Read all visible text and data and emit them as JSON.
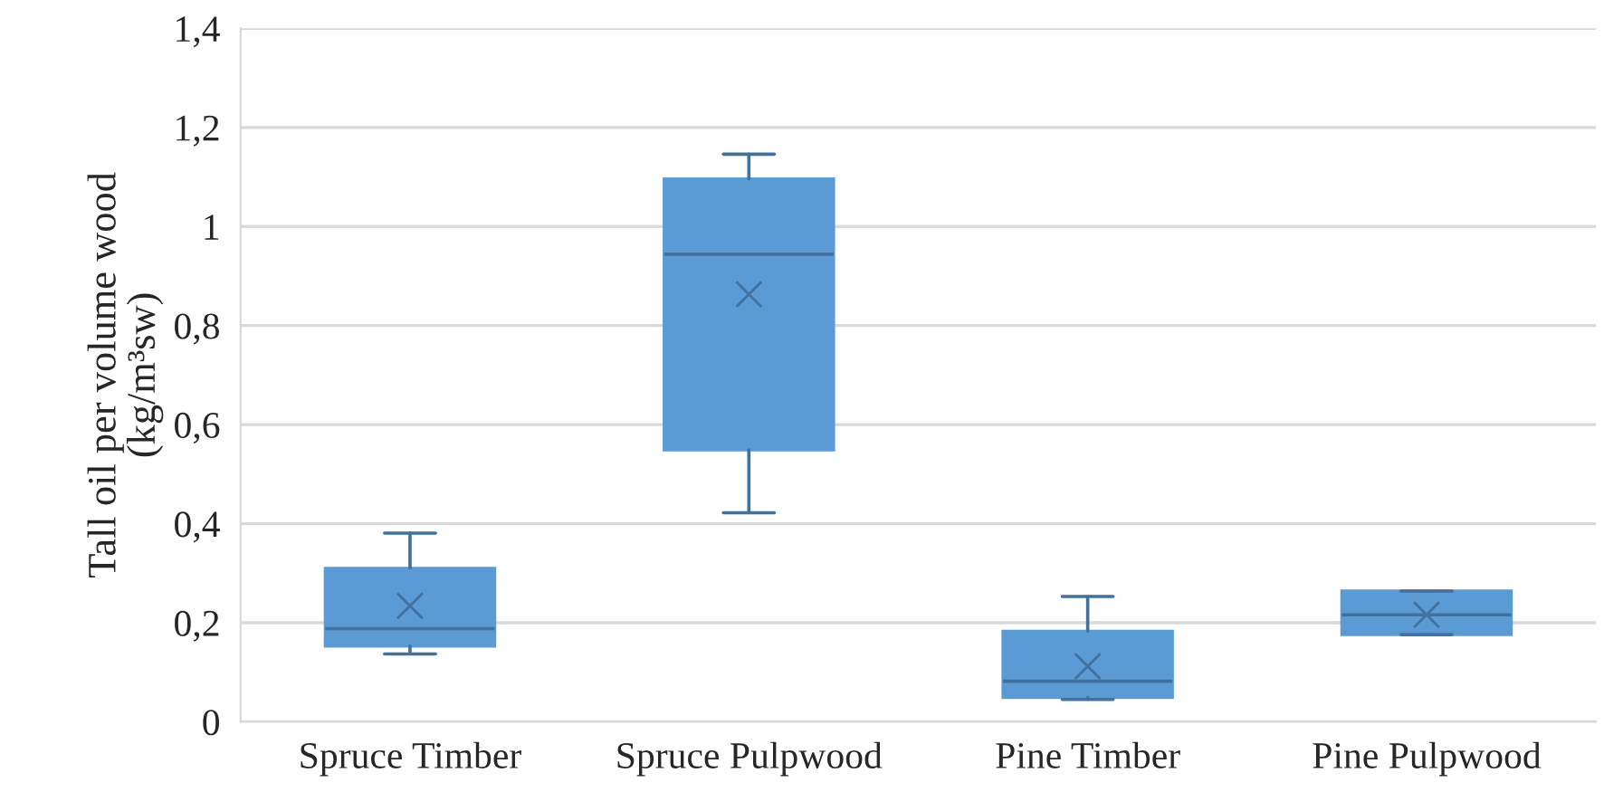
{
  "chart_data": {
    "type": "box",
    "ylabel": "Tall oil per volume wood\n(kg/m³sw)",
    "categories": [
      "Spruce Timber",
      "Spruce Pulpwood",
      "Pine Timber",
      "Pine Pulpwood"
    ],
    "boxes": [
      {
        "low": 0.137,
        "q1": 0.153,
        "median": 0.188,
        "q3": 0.31,
        "high": 0.381,
        "mean": 0.234
      },
      {
        "low": 0.422,
        "q1": 0.549,
        "median": 0.944,
        "q3": 1.096,
        "high": 1.146,
        "mean": 0.863
      },
      {
        "low": 0.045,
        "q1": 0.049,
        "median": 0.082,
        "q3": 0.183,
        "high": 0.253,
        "mean": 0.112
      },
      {
        "low": 0.176,
        "q1": 0.176,
        "median": 0.216,
        "q3": 0.264,
        "high": 0.264,
        "mean": 0.216
      }
    ],
    "color": "#5b9bd5",
    "ylim": [
      0,
      1.4
    ],
    "yticks": [
      0,
      {
        "value": 0.2,
        "label": "0,2"
      },
      {
        "value": 0.4,
        "label": "0,4"
      },
      {
        "value": 0.6,
        "label": "0,6"
      },
      {
        "value": 0.8,
        "label": "0,8"
      },
      1,
      {
        "value": 1.2,
        "label": "1,2"
      },
      {
        "value": 1.4,
        "label": "1,4"
      }
    ],
    "grid": "y"
  }
}
